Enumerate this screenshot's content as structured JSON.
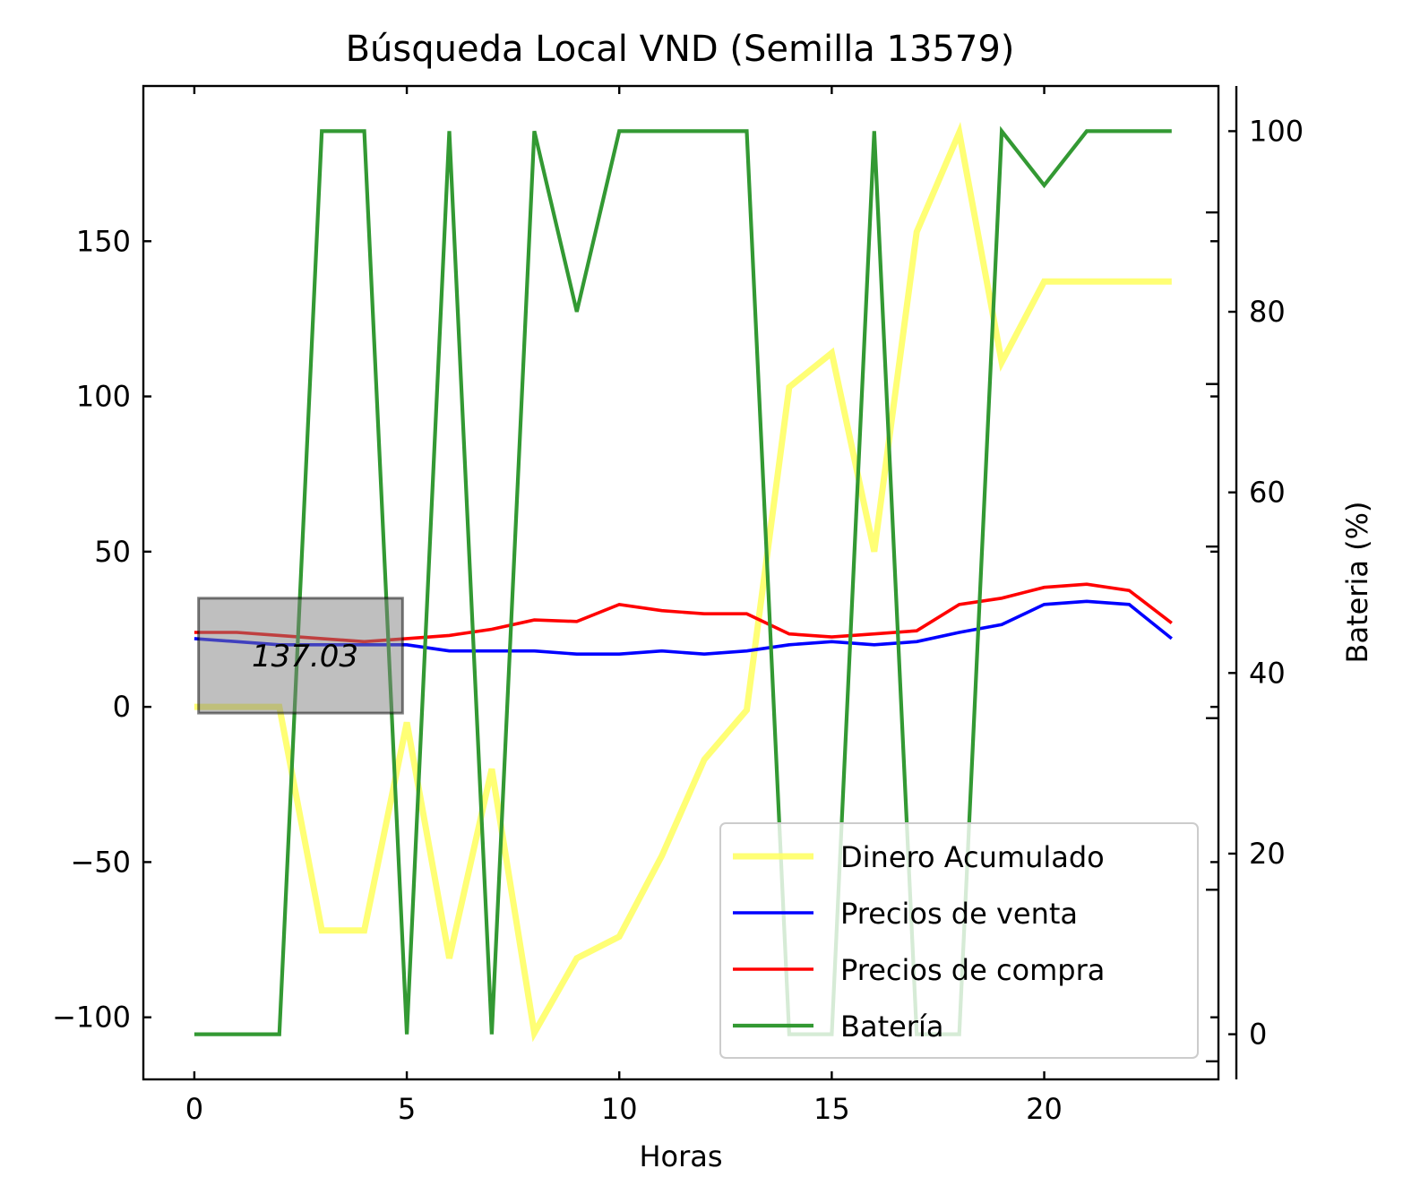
{
  "chart_data": {
    "type": "line",
    "title": "Búsqueda Local VND (Semilla 13579)",
    "xlabel": "Horas",
    "ylabel": "",
    "y2label": "Bateria (%)",
    "y2label_color": "#008000",
    "xlim": [
      -1.2,
      24.1
    ],
    "ylim": [
      -120,
      200
    ],
    "y2lim": [
      -5,
      105
    ],
    "xticks": [
      0,
      5,
      10,
      15,
      20
    ],
    "yticks": [
      -100,
      -50,
      0,
      50,
      100,
      150
    ],
    "y2ticks": [
      0,
      20,
      40,
      60,
      80,
      100
    ],
    "x": [
      0,
      1,
      2,
      3,
      4,
      5,
      6,
      7,
      8,
      9,
      10,
      11,
      12,
      13,
      14,
      15,
      16,
      17,
      18,
      19,
      20,
      21,
      22,
      23
    ],
    "series": [
      {
        "name": "Dinero Acumulado",
        "axis": "left",
        "color": "#ffff66",
        "values": [
          0,
          0,
          0,
          -72,
          -72,
          -5,
          -81,
          -20,
          -105,
          -81,
          -74,
          -48,
          -17,
          -1,
          103,
          114,
          50,
          153,
          185,
          111,
          137,
          137.03,
          137.03,
          137.03
        ]
      },
      {
        "name": "Precios de venta",
        "axis": "left",
        "color": "#0000ff",
        "values": [
          22,
          21,
          20,
          20,
          20,
          20,
          18,
          18,
          18,
          17,
          17,
          18,
          17,
          18,
          20,
          21,
          20,
          21,
          24,
          26.5,
          33,
          34,
          33,
          22
        ]
      },
      {
        "name": "Precios de compra",
        "axis": "left",
        "color": "#ff0000",
        "values": [
          24,
          24,
          23,
          22,
          21,
          22,
          23,
          25,
          28,
          27.5,
          33,
          31,
          30,
          30,
          23.5,
          22.5,
          23.5,
          24.5,
          33,
          35,
          38.5,
          39.5,
          37.5,
          27
        ]
      },
      {
        "name": "Batería",
        "axis": "right",
        "color": "#339933",
        "values": [
          0,
          0,
          0,
          100,
          100,
          0,
          100,
          0,
          100,
          80,
          100,
          100,
          100,
          100,
          0,
          0,
          100,
          0,
          0,
          100,
          94,
          100,
          100,
          100
        ]
      }
    ],
    "annotation": {
      "text": "137.03",
      "x_range": [
        0.1,
        4.9
      ],
      "y_range": [
        -2,
        35
      ]
    },
    "legend_position": "lower-right",
    "grid": false
  }
}
